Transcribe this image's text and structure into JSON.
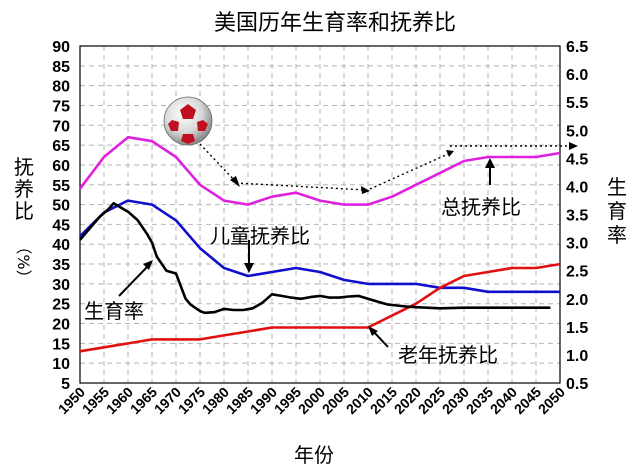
{
  "chart_data": {
    "type": "line",
    "title": "美国历年生育率和抚养比",
    "xlabel": "年份",
    "ylabel_left": [
      "抚",
      "养",
      "比",
      "（%）"
    ],
    "ylabel_right": [
      "生",
      "育",
      "率"
    ],
    "x_ticks": [
      1950,
      1955,
      1960,
      1965,
      1970,
      1975,
      1980,
      1985,
      1990,
      1995,
      2000,
      2005,
      2010,
      2015,
      2020,
      2025,
      2030,
      2035,
      2040,
      2045,
      2050
    ],
    "xlim": [
      1950,
      2050
    ],
    "ylim_left": [
      5,
      90
    ],
    "yticks_left": [
      5,
      10,
      15,
      20,
      25,
      30,
      35,
      40,
      45,
      50,
      55,
      60,
      65,
      70,
      75,
      80,
      85,
      90
    ],
    "ylim_right": [
      0.5,
      6.5
    ],
    "yticks_right": [
      "0.5",
      "1.0",
      "1.5",
      "2.0",
      "2.5",
      "3.0",
      "3.5",
      "4.0",
      "4.5",
      "5.0",
      "5.5",
      "6.0",
      "6.5"
    ],
    "grid": true,
    "series": [
      {
        "name": "总抚养比",
        "color": "#e020e0",
        "axis": "left",
        "x": [
          1950,
          1955,
          1960,
          1965,
          1970,
          1975,
          1980,
          1985,
          1990,
          1995,
          2000,
          2005,
          2010,
          2015,
          2020,
          2025,
          2030,
          2035,
          2040,
          2045,
          2050
        ],
        "y": [
          54,
          62,
          67,
          66,
          62,
          55,
          51,
          50,
          52,
          53,
          51,
          50,
          50,
          52,
          55,
          58,
          61,
          62,
          62,
          62,
          63
        ]
      },
      {
        "name": "儿童抚养比",
        "color": "#1010cc",
        "axis": "left",
        "x": [
          1950,
          1955,
          1960,
          1965,
          1970,
          1975,
          1980,
          1985,
          1990,
          1995,
          2000,
          2005,
          2010,
          2015,
          2020,
          2025,
          2030,
          2035,
          2040,
          2045,
          2050
        ],
        "y": [
          42,
          48,
          51,
          50,
          46,
          39,
          34,
          32,
          33,
          34,
          33,
          31,
          30,
          30,
          30,
          29,
          29,
          28,
          28,
          28,
          28
        ]
      },
      {
        "name": "老年抚养比",
        "color": "#e01010",
        "axis": "left",
        "x": [
          1950,
          1955,
          1960,
          1965,
          1970,
          1975,
          1980,
          1985,
          1990,
          1995,
          2000,
          2005,
          2010,
          2015,
          2020,
          2025,
          2030,
          2035,
          2040,
          2045,
          2050
        ],
        "y": [
          13,
          14,
          15,
          16,
          16,
          16,
          17,
          18,
          19,
          19,
          19,
          19,
          19,
          22,
          25,
          29,
          32,
          33,
          34,
          34,
          35
        ]
      },
      {
        "name": "生育率",
        "color": "#000000",
        "axis": "right",
        "x": [
          1950,
          1952,
          1954,
          1956,
          1957,
          1958,
          1960,
          1962,
          1964,
          1965,
          1966,
          1968,
          1970,
          1972,
          1973,
          1975,
          1976,
          1978,
          1980,
          1982,
          1984,
          1986,
          1988,
          1990,
          1992,
          1994,
          1996,
          1998,
          2000,
          2002,
          2004,
          2006,
          2008,
          2010,
          2012,
          2014,
          2016,
          2018,
          2020,
          2025,
          2030,
          2035,
          2040,
          2045,
          2048
        ],
        "y": [
          3.05,
          3.25,
          3.45,
          3.6,
          3.7,
          3.65,
          3.55,
          3.4,
          3.15,
          3.0,
          2.75,
          2.5,
          2.45,
          2.0,
          1.9,
          1.78,
          1.75,
          1.76,
          1.82,
          1.8,
          1.8,
          1.83,
          1.93,
          2.08,
          2.05,
          2.02,
          2.0,
          2.03,
          2.05,
          2.02,
          2.02,
          2.04,
          2.05,
          2.0,
          1.95,
          1.9,
          1.88,
          1.86,
          1.85,
          1.83,
          1.84,
          1.84,
          1.84,
          1.84,
          1.84
        ]
      }
    ],
    "annotations": {
      "total_label": "总抚养比",
      "child_label": "儿童抚养比",
      "elderly_label": "老年抚养比",
      "fertility_label": "生育率"
    }
  }
}
